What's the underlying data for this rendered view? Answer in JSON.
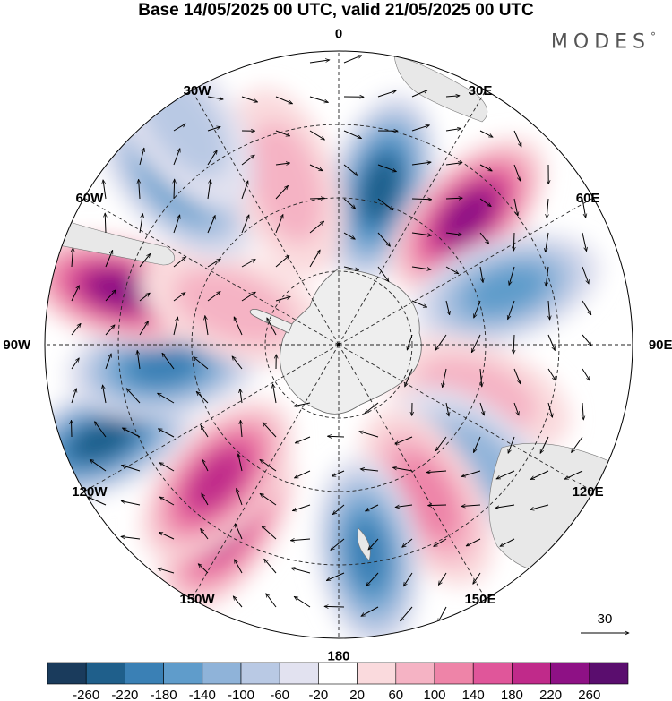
{
  "title": "Base 14/05/2025 00 UTC, valid 21/05/2025 00 UTC",
  "brand": "MODES",
  "brand_mark": "°",
  "map": {
    "projection": "south-polar-stereographic",
    "meridian_labels": [
      {
        "text": "0",
        "lon": 0
      },
      {
        "text": "30E",
        "lon": 30
      },
      {
        "text": "60E",
        "lon": 60
      },
      {
        "text": "90E",
        "lon": 90
      },
      {
        "text": "120E",
        "lon": 120
      },
      {
        "text": "150E",
        "lon": 150
      },
      {
        "text": "180",
        "lon": 180
      },
      {
        "text": "150W",
        "lon": -150
      },
      {
        "text": "120W",
        "lon": -120
      },
      {
        "text": "90W",
        "lon": -90
      },
      {
        "text": "60W",
        "lon": -60
      },
      {
        "text": "30W",
        "lon": -30
      }
    ],
    "reference_vector": {
      "label": "30"
    },
    "anomaly_centres": [
      {
        "lon": 15,
        "lat_frac": 0.55,
        "value": -200
      },
      {
        "lon": 45,
        "lat_frac": 0.62,
        "value": 230
      },
      {
        "lon": 72,
        "lat_frac": 0.6,
        "value": -120
      },
      {
        "lon": 110,
        "lat_frac": 0.5,
        "value": 60
      },
      {
        "lon": 130,
        "lat_frac": 0.62,
        "value": -80
      },
      {
        "lon": 150,
        "lat_frac": 0.6,
        "value": 80
      },
      {
        "lon": 172,
        "lat_frac": 0.72,
        "value": -180
      },
      {
        "lon": -148,
        "lat_frac": 0.72,
        "value": 160
      },
      {
        "lon": -138,
        "lat_frac": 0.62,
        "value": 170
      },
      {
        "lon": -112,
        "lat_frac": 0.87,
        "value": -200
      },
      {
        "lon": -97,
        "lat_frac": 0.6,
        "value": -180
      },
      {
        "lon": -76,
        "lat_frac": 0.77,
        "value": 230
      },
      {
        "lon": -70,
        "lat_frac": 0.38,
        "value": 60
      },
      {
        "lon": -45,
        "lat_frac": 0.78,
        "value": -140
      },
      {
        "lon": -18,
        "lat_frac": 0.58,
        "value": 60
      },
      {
        "lon": -35,
        "lat_frac": 0.92,
        "value": -40
      }
    ]
  },
  "colorbar": {
    "labels": [
      "-260",
      "-220",
      "-180",
      "-140",
      "-100",
      "-60",
      "-20",
      "20",
      "60",
      "100",
      "140",
      "180",
      "220",
      "260"
    ],
    "colors": [
      "#1a3b5c",
      "#1f5f8b",
      "#3a80b5",
      "#5f9ccb",
      "#8fb3d9",
      "#b9c9e4",
      "#e2e2f0",
      "#ffffff",
      "#fadadd",
      "#f5b3c4",
      "#ee84a8",
      "#e0569a",
      "#c02a8a",
      "#8e1185",
      "#5a0d6e"
    ]
  }
}
